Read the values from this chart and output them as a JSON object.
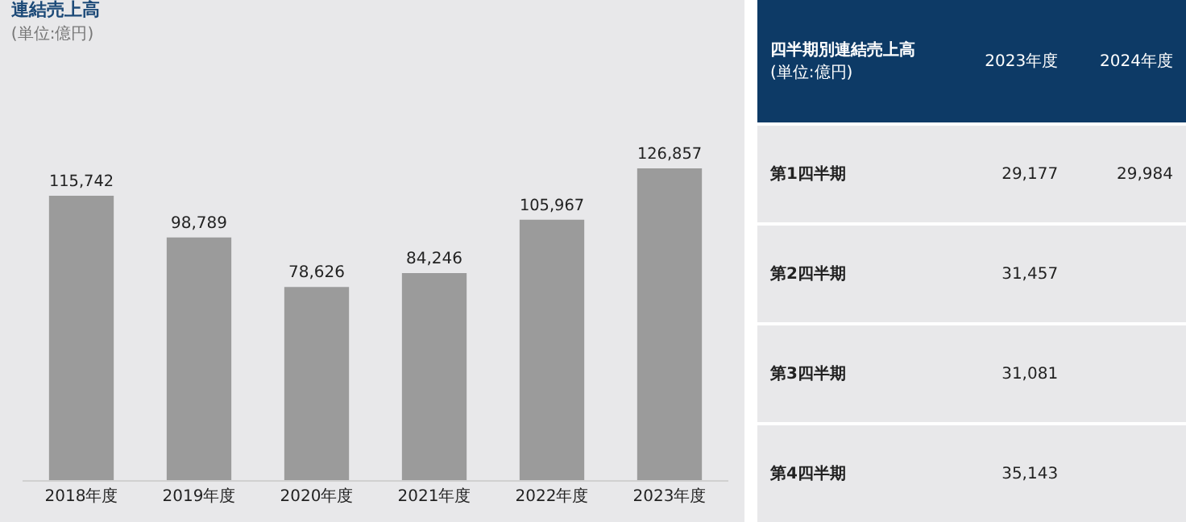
{
  "chart_data": [
    {
      "type": "bar",
      "title": "連結売上高",
      "subtitle": "(単位:億円)",
      "categories": [
        "2018年度",
        "2019年度",
        "2020年度",
        "2021年度",
        "2022年度",
        "2023年度"
      ],
      "values": [
        115742,
        98789,
        78626,
        84246,
        105967,
        126857
      ],
      "value_labels": [
        "115,742",
        "98,789",
        "78,626",
        "84,246",
        "105,967",
        "126,857"
      ],
      "color": "#9b9b9b"
    },
    {
      "type": "other",
      "title": "四半期別連結売上高",
      "subtitle": "(単位:億円)",
      "categories": [
        "第1四半期",
        "第2四半期",
        "第3四半期",
        "第4四半期"
      ],
      "series": [
        {
          "name": "2023年度",
          "values": [
            29177,
            31457,
            31081,
            35143
          ],
          "value_labels": [
            "29,177",
            "31,457",
            "31,081",
            "35,143"
          ]
        },
        {
          "name": "2024年度",
          "values": [
            29984,
            null,
            null,
            null
          ],
          "value_labels": [
            "29,984",
            null,
            null,
            null
          ]
        }
      ]
    }
  ]
}
